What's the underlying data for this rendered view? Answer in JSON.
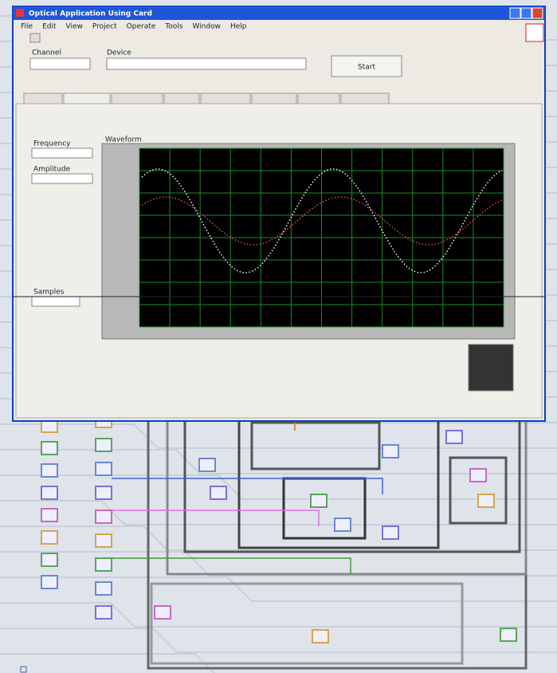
{
  "window": {
    "title": "Optical Application Using Card",
    "menu": [
      "File",
      "Edit",
      "View",
      "Project",
      "Operate",
      "Tools",
      "Window",
      "Help"
    ]
  },
  "front_panel": {
    "channel_label": "Channel",
    "device_label": "Device",
    "button": "Start",
    "fields": [
      {
        "label": "Frequency"
      },
      {
        "label": "Amplitude"
      },
      {
        "label": "Samples"
      }
    ],
    "graph_title": "Waveform"
  }
}
